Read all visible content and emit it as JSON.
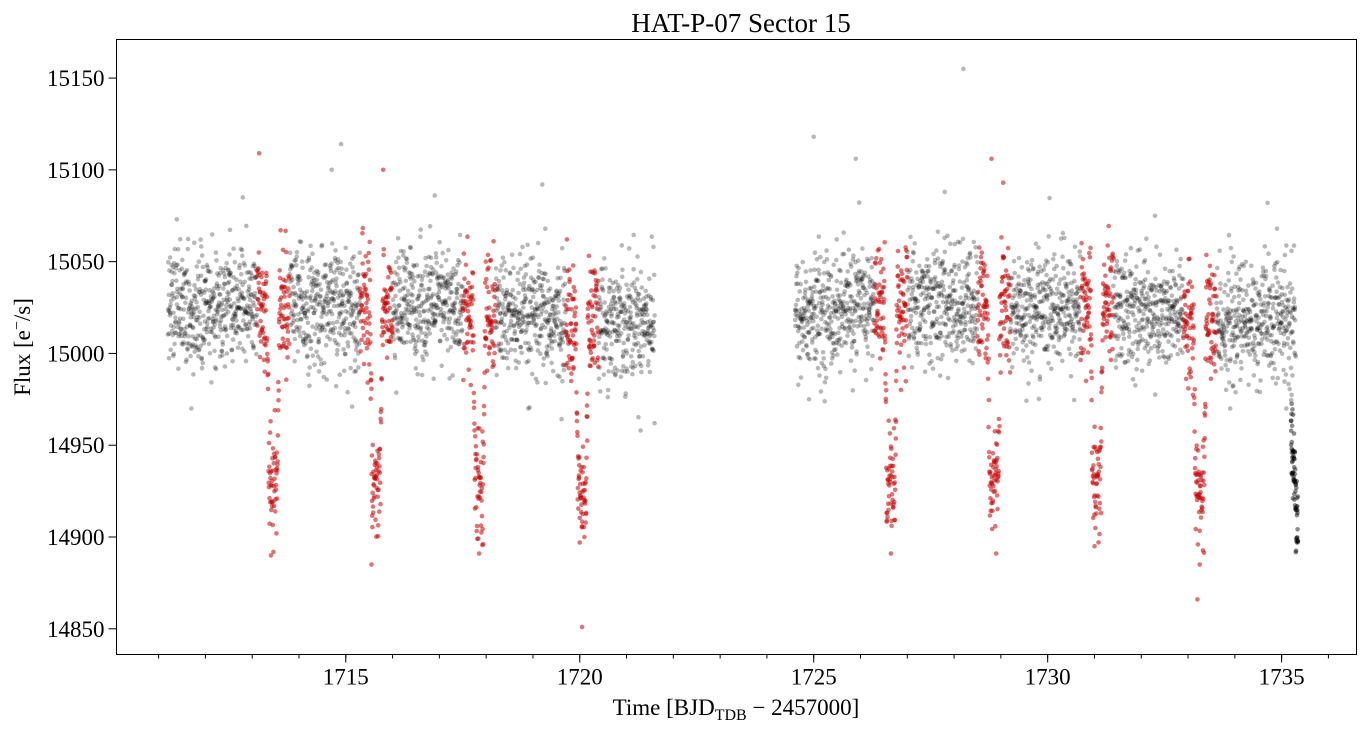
{
  "chart_data": {
    "type": "scatter",
    "title": "HAT-P-07 Sector 15",
    "xlabel": {
      "prefix": "Time [BJD",
      "subscript": "TDB",
      "suffix": " − 2457000]"
    },
    "ylabel": {
      "prefix": "Flux [e",
      "superscript": "−",
      "suffix": "/s]"
    },
    "xlim": [
      1710.1,
      1736.6
    ],
    "ylim": [
      14836,
      15171
    ],
    "x_ticks": [
      1715,
      1720,
      1725,
      1730,
      1735
    ],
    "x_tick_labels": [
      "1715",
      "1720",
      "1725",
      "1730",
      "1735"
    ],
    "x_minor_step": 1,
    "y_ticks": [
      14850,
      14900,
      14950,
      15000,
      15050,
      15100,
      15150
    ],
    "y_tick_labels": [
      "14850",
      "14900",
      "14950",
      "15000",
      "15050",
      "15100",
      "15150"
    ],
    "grid": false,
    "series": [
      {
        "color": "#000000",
        "alpha": 0.28,
        "segments": [
          [
            1711.2,
            1721.6
          ],
          [
            1724.6,
            1735.3
          ]
        ],
        "median_flux": 15022,
        "scatter": 16,
        "sample_points": [
          {
            "x": 1714.9,
            "y": 15114
          },
          {
            "x": 1714.7,
            "y": 15100
          },
          {
            "x": 1719.2,
            "y": 15092
          },
          {
            "x": 1712.8,
            "y": 15085
          },
          {
            "x": 1716.9,
            "y": 15086
          },
          {
            "x": 1711.7,
            "y": 14970
          },
          {
            "x": 1718.9,
            "y": 14970
          },
          {
            "x": 1721.3,
            "y": 14958
          },
          {
            "x": 1721.6,
            "y": 14962
          },
          {
            "x": 1725.0,
            "y": 15118
          },
          {
            "x": 1725.9,
            "y": 15106
          },
          {
            "x": 1728.2,
            "y": 15155
          },
          {
            "x": 1727.8,
            "y": 15088
          },
          {
            "x": 1734.7,
            "y": 15082
          },
          {
            "x": 1734.9,
            "y": 15068
          },
          {
            "x": 1733.9,
            "y": 14970
          },
          {
            "x": 1735.1,
            "y": 14970
          },
          {
            "x": 1724.9,
            "y": 14975
          }
        ]
      },
      {
        "color": "#cc0000",
        "alpha": 0.55,
        "name": "",
        "eclipse_centers": [
          1713.45,
          1715.65,
          1717.85,
          1720.05,
          1726.65,
          1728.85,
          1731.05,
          1733.25
        ],
        "transit_depth": 95,
        "sample_points": [
          {
            "x": 1713.15,
            "y": 15109
          },
          {
            "x": 1713.4,
            "y": 14890
          },
          {
            "x": 1715.55,
            "y": 14885
          },
          {
            "x": 1715.8,
            "y": 15100
          },
          {
            "x": 1717.85,
            "y": 14891
          },
          {
            "x": 1720.05,
            "y": 14851
          },
          {
            "x": 1720.0,
            "y": 14897
          },
          {
            "x": 1726.65,
            "y": 14891
          },
          {
            "x": 1728.8,
            "y": 15106
          },
          {
            "x": 1728.9,
            "y": 14891
          },
          {
            "x": 1729.05,
            "y": 15093
          },
          {
            "x": 1731.0,
            "y": 14895
          },
          {
            "x": 1733.2,
            "y": 14866
          },
          {
            "x": 1733.25,
            "y": 14885
          }
        ]
      },
      {
        "color": "#000000",
        "alpha": 0.45,
        "name": "",
        "segment": [
          1735.2,
          1735.35
        ],
        "flux_range": [
          14886,
          14966
        ]
      }
    ]
  }
}
